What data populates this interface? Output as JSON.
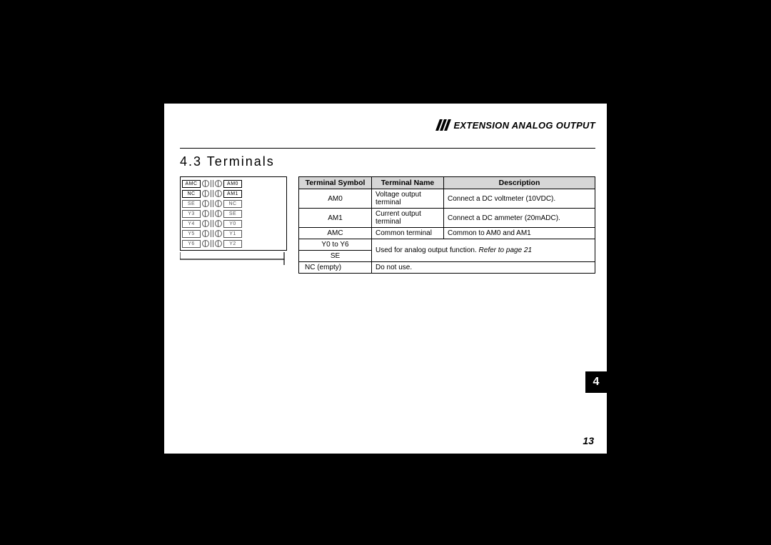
{
  "header": {
    "chapter_label": "EXTENSION ANALOG OUTPUT"
  },
  "section": {
    "number_title": "4.3 Terminals"
  },
  "diagram": {
    "left_col": [
      "AMC",
      "NC",
      "SE",
      "Y3",
      "Y4",
      "Y5",
      "Y6"
    ],
    "right_col": [
      "AM0",
      "AM1",
      "NC",
      "SE",
      "Y0",
      "Y1",
      "Y2"
    ],
    "dark_left_indices": [
      0,
      1
    ],
    "dark_right_indices": [
      0,
      1
    ]
  },
  "table": {
    "columns": [
      "Terminal Symbol",
      "Terminal Name",
      "Description"
    ],
    "header_bg": "#d6d6d6",
    "rows": [
      {
        "symbol": "AM0",
        "name": "Voltage output terminal",
        "desc": "Connect a DC voltmeter (10VDC)."
      },
      {
        "symbol": "AM1",
        "name": "Current output terminal",
        "desc": "Connect a DC ammeter (20mADC)."
      },
      {
        "symbol": "AMC",
        "name": "Common terminal",
        "desc": "Common to AM0 and AM1"
      }
    ],
    "merged": {
      "symbols": [
        "Y0 to Y6",
        "SE"
      ],
      "desc_plain": "Used for analog output function.  ",
      "desc_italic": "Refer to page 21"
    },
    "last": {
      "symbol": "NC (empty)",
      "desc": "Do not use."
    }
  },
  "tab": {
    "label": "4"
  },
  "page_number": "13",
  "colors": {
    "page_bg": "#ffffff",
    "outer_bg": "#000000",
    "border": "#000000",
    "muted": "#555555"
  }
}
